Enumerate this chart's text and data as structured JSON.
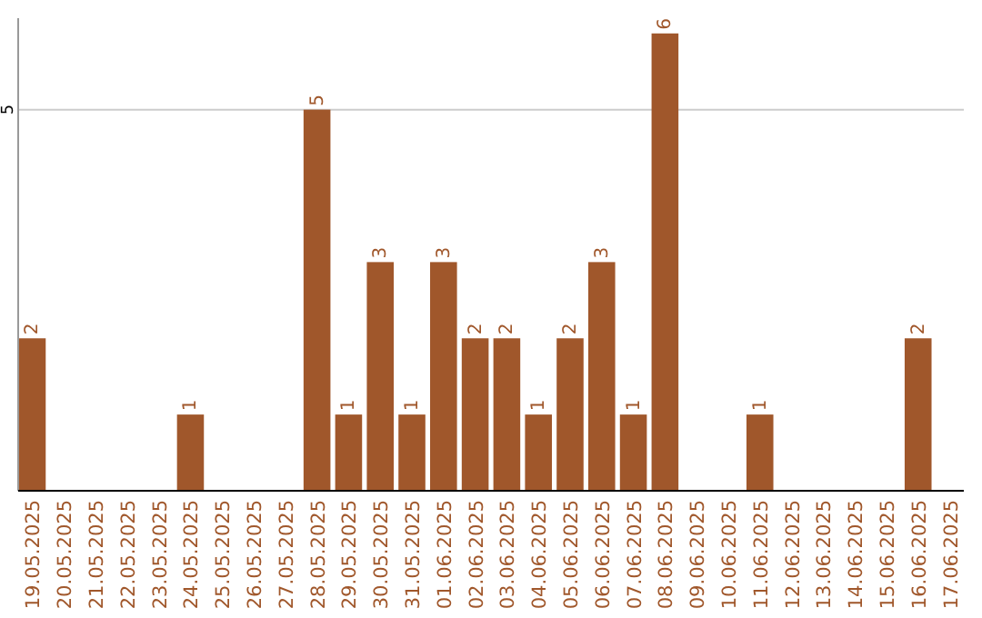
{
  "chart_data": {
    "type": "bar",
    "categories": [
      "19.05.2025",
      "20.05.2025",
      "21.05.2025",
      "22.05.2025",
      "23.05.2025",
      "24.05.2025",
      "25.05.2025",
      "26.05.2025",
      "27.05.2025",
      "28.05.2025",
      "29.05.2025",
      "30.05.2025",
      "31.05.2025",
      "01.06.2025",
      "02.06.2025",
      "03.06.2025",
      "04.06.2025",
      "05.06.2025",
      "06.06.2025",
      "07.06.2025",
      "08.06.2025",
      "09.06.2025",
      "10.06.2025",
      "11.06.2025",
      "12.06.2025",
      "13.06.2025",
      "14.06.2025",
      "15.06.2025",
      "16.06.2025",
      "17.06.2025"
    ],
    "values": [
      2,
      0,
      0,
      0,
      0,
      1,
      0,
      0,
      0,
      5,
      1,
      3,
      1,
      3,
      2,
      2,
      1,
      2,
      3,
      1,
      6,
      0,
      0,
      1,
      0,
      0,
      0,
      0,
      2,
      0
    ],
    "value_labels": [
      "2",
      null,
      null,
      null,
      null,
      "1",
      null,
      null,
      null,
      "5",
      "1",
      "3",
      "1",
      "3",
      "2",
      "2",
      "1",
      "2",
      "3",
      "1",
      "6",
      null,
      null,
      "1",
      null,
      null,
      null,
      null,
      "2",
      null
    ],
    "color": "#a0572b",
    "ylim": [
      0,
      6.2
    ],
    "yticks": [
      5
    ],
    "grid": "y"
  }
}
